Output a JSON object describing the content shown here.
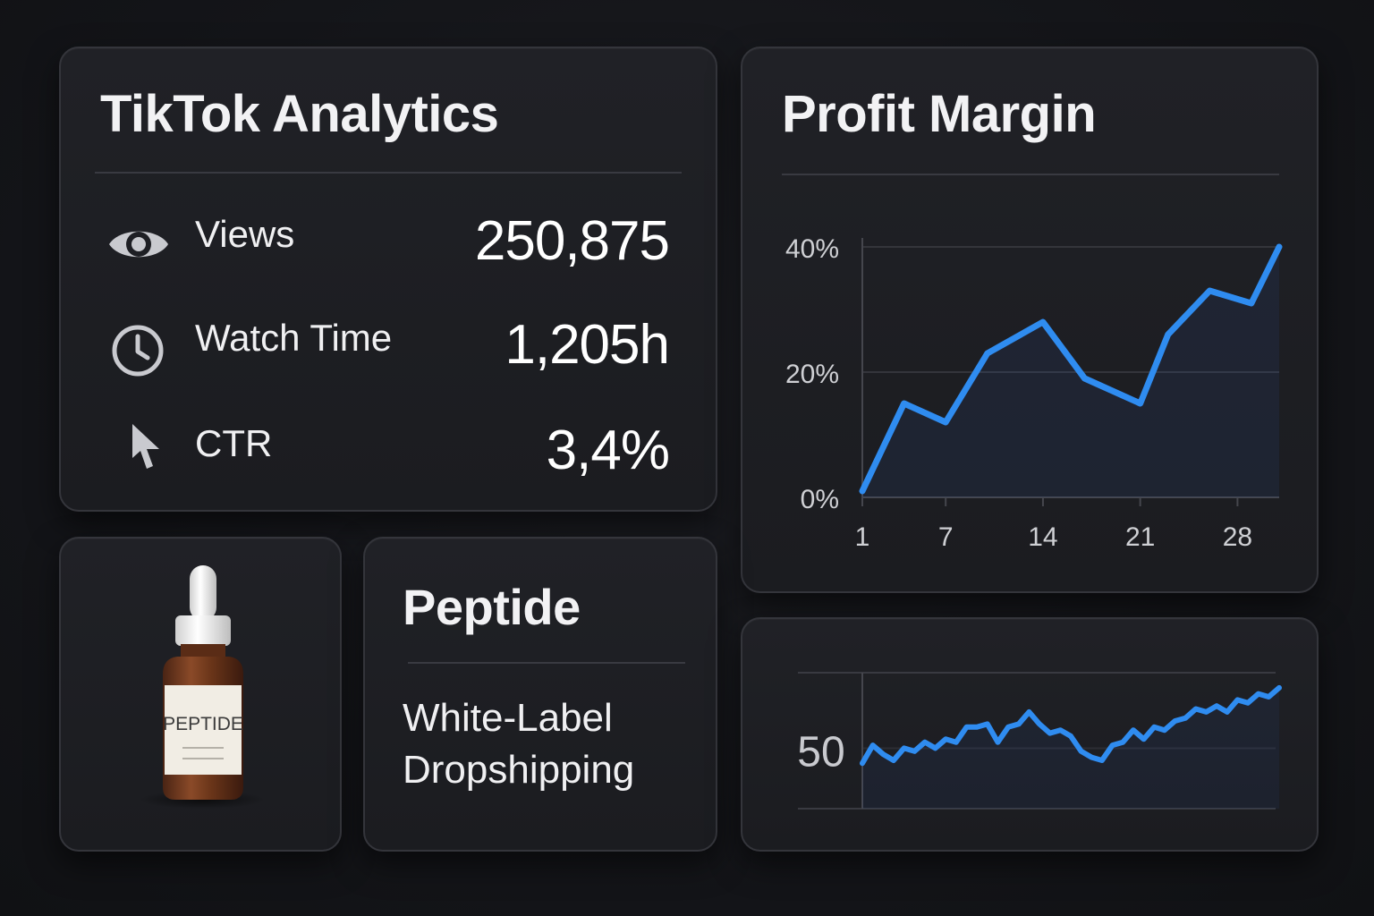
{
  "tiktok": {
    "title": "TikTok Analytics",
    "metrics": [
      {
        "label": "Views",
        "value": "250,875",
        "icon": "eye-icon"
      },
      {
        "label": "Watch Time",
        "value": "1,205h",
        "icon": "clock-icon"
      },
      {
        "label": "CTR",
        "value": "3,4%",
        "icon": "cursor-icon"
      }
    ]
  },
  "profit": {
    "title": "Profit Margin"
  },
  "product": {
    "bottle_label": "PEPTIDE",
    "image_icon": "dropper-bottle"
  },
  "peptide": {
    "title": "Peptide",
    "description": "White-Label Dropshipping"
  },
  "colors": {
    "accent": "#2f8cf0",
    "background": "#141519",
    "card": "#1e1f24",
    "border": "#34353b"
  },
  "chart_data": [
    {
      "type": "area",
      "title": "Profit Margin",
      "x": [
        1,
        4,
        7,
        10,
        14,
        17,
        21,
        23,
        26,
        29,
        31
      ],
      "values": [
        1,
        15,
        12,
        23,
        28,
        19,
        15,
        26,
        33,
        31,
        40
      ],
      "xticks": [
        "1",
        "7",
        "14",
        "21",
        "28"
      ],
      "xtick_values": [
        1,
        7,
        14,
        21,
        28
      ],
      "yticks": [
        "0%",
        "20%",
        "40%"
      ],
      "ytick_values": [
        0,
        20,
        40
      ],
      "ylim": [
        0,
        40
      ],
      "xlim": [
        1,
        31
      ],
      "grid": true,
      "color": "#2f8cf0"
    },
    {
      "type": "area",
      "x": [
        0,
        1,
        2,
        3,
        4,
        5,
        6,
        7,
        8,
        9,
        10,
        11,
        12,
        13,
        14,
        15,
        16,
        17,
        18,
        19,
        20,
        21,
        22,
        23,
        24,
        25,
        26,
        27,
        28,
        29,
        30,
        31,
        32,
        33,
        34,
        35,
        36,
        37,
        38,
        39,
        40
      ],
      "values": [
        45,
        51,
        48,
        46,
        50,
        49,
        52,
        50,
        53,
        52,
        57,
        57,
        58,
        52,
        57,
        58,
        62,
        58,
        55,
        56,
        54,
        49,
        47,
        46,
        51,
        52,
        56,
        53,
        57,
        56,
        59,
        60,
        63,
        62,
        64,
        62,
        66,
        65,
        68,
        67,
        70
      ],
      "yticks": [
        "50"
      ],
      "ytick_values": [
        50
      ],
      "ylim": [
        30,
        75
      ],
      "grid": true,
      "color": "#2f8cf0"
    }
  ]
}
